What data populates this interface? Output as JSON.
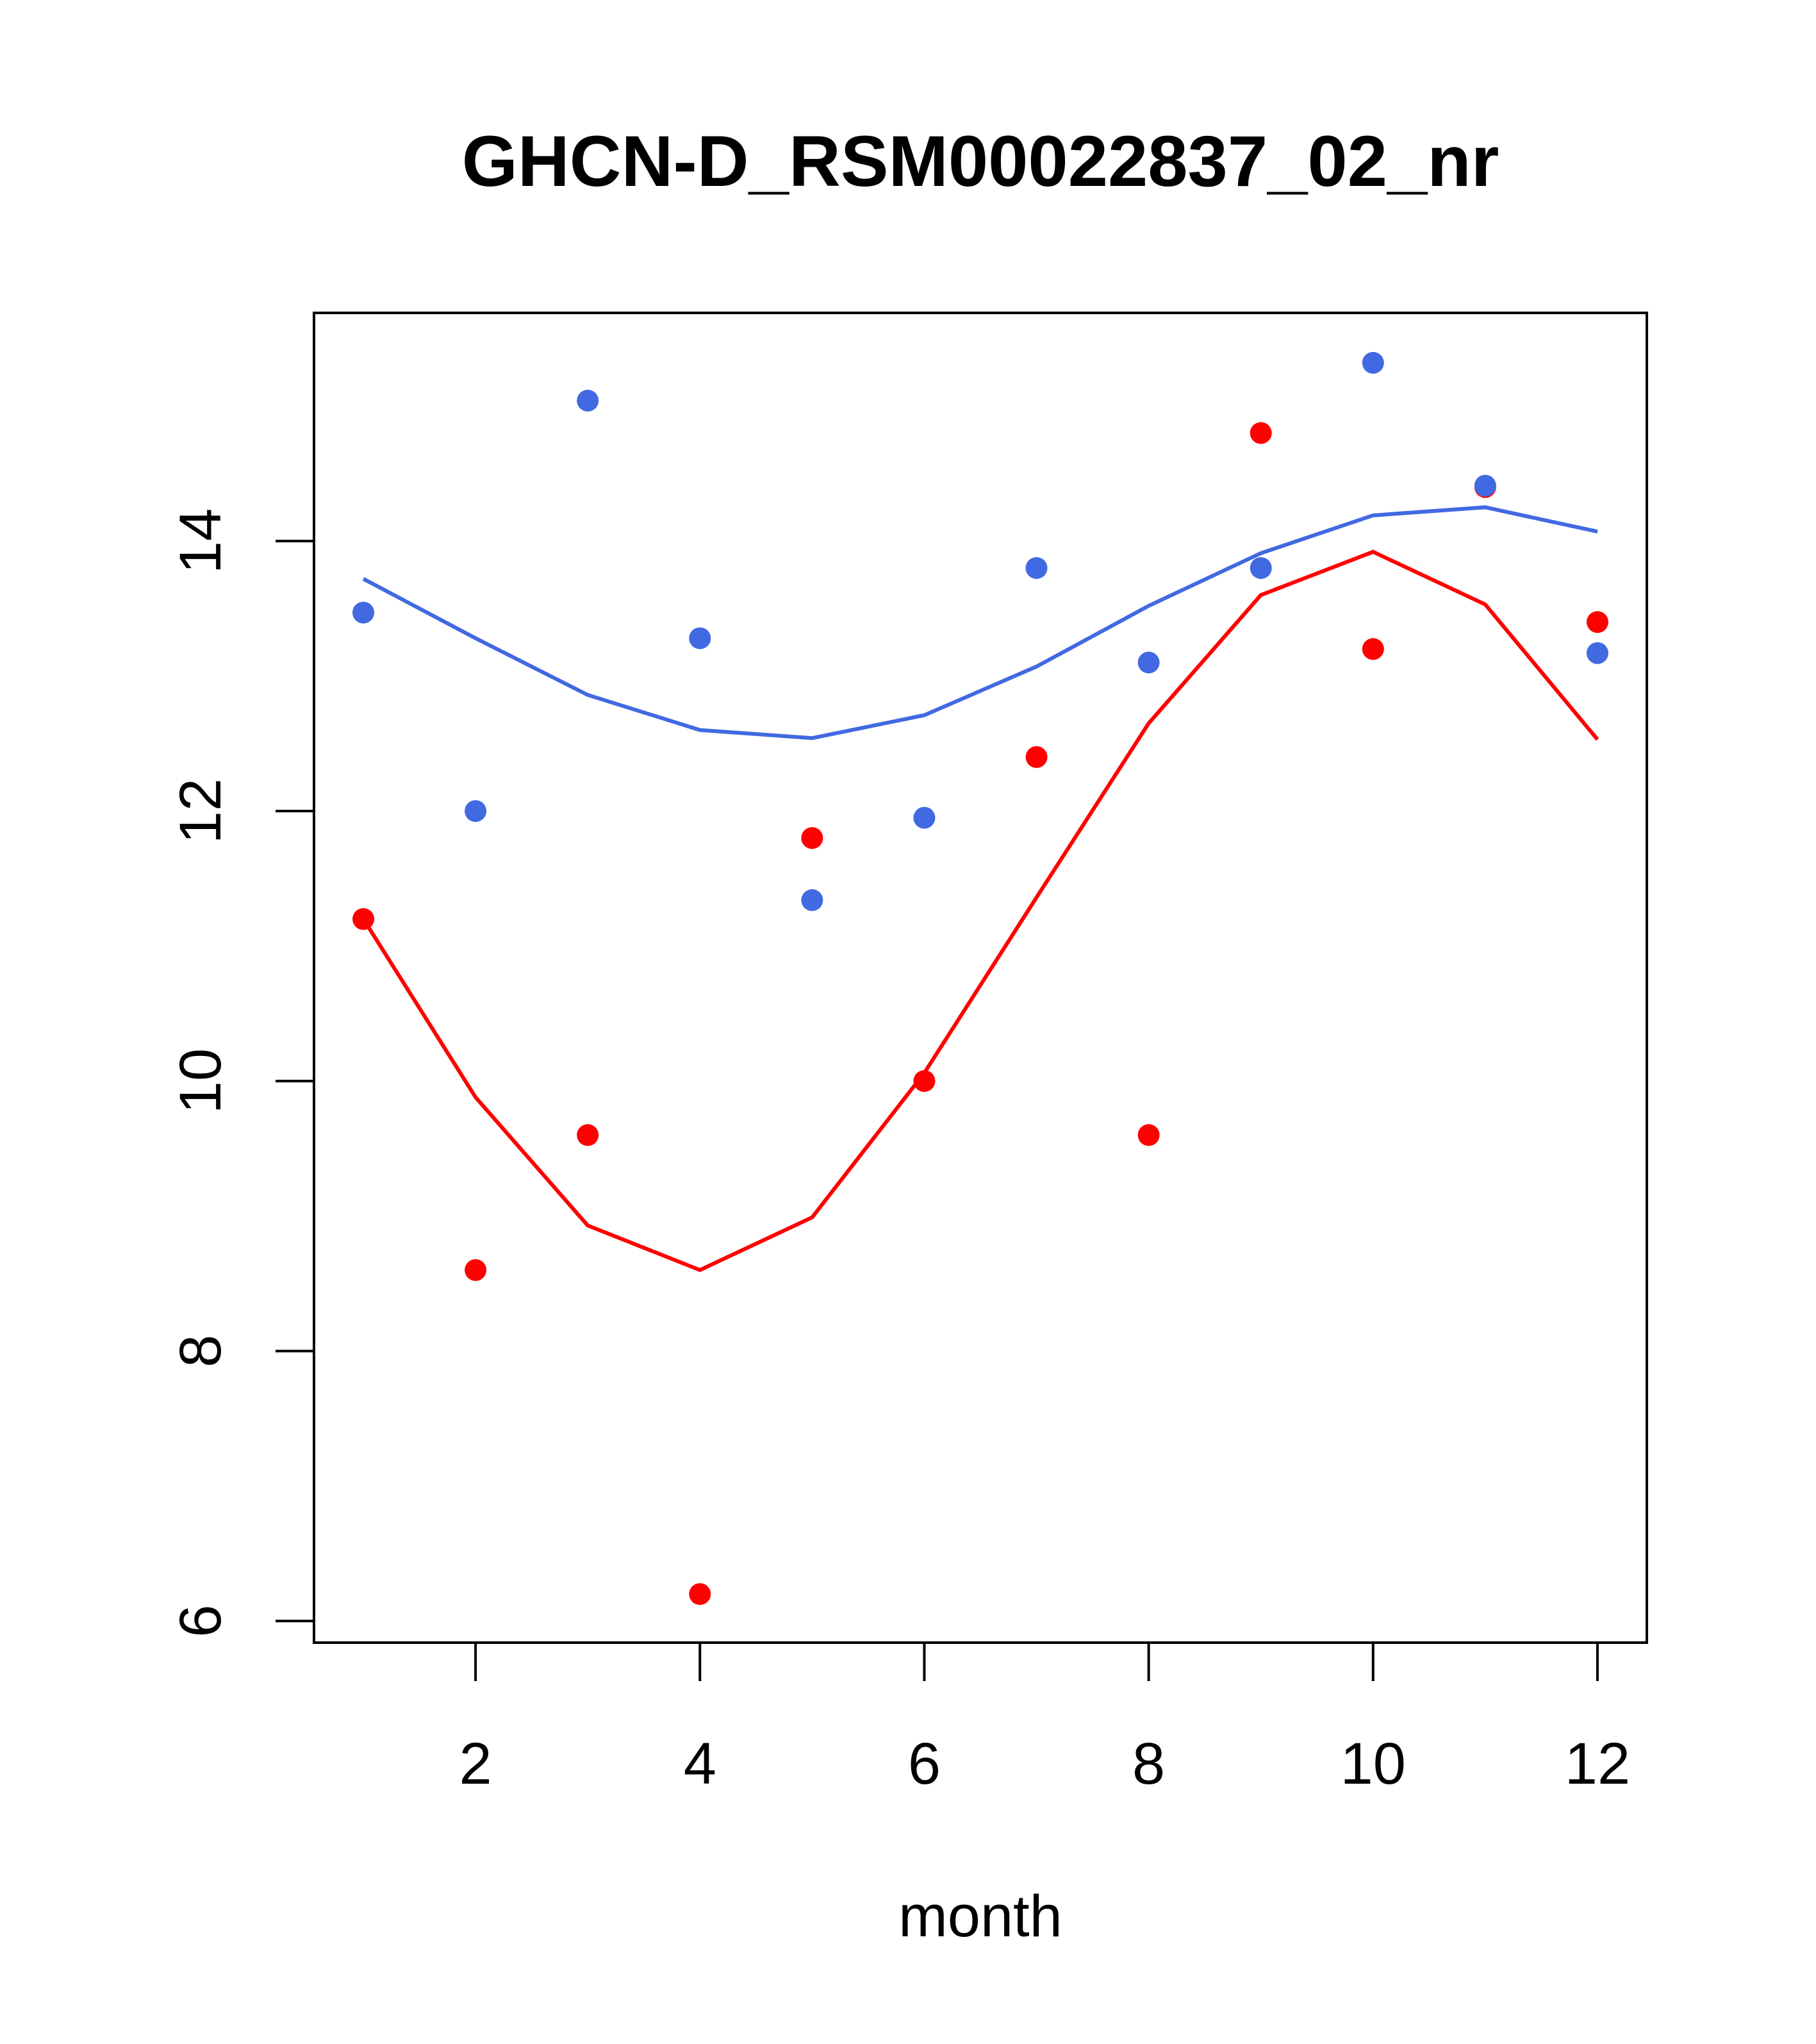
{
  "chart_data": {
    "type": "scatter",
    "title": "GHCN-D_RSM00022837_02_nr",
    "xlabel": "month",
    "ylabel": "",
    "xlim": [
      0.56,
      12.44
    ],
    "ylim": [
      5.84,
      15.69
    ],
    "xticks": [
      2,
      4,
      6,
      8,
      10,
      12
    ],
    "yticks": [
      6,
      8,
      10,
      12,
      14
    ],
    "grid": false,
    "x": [
      1,
      2,
      3,
      4,
      5,
      6,
      7,
      8,
      9,
      10,
      11,
      12
    ],
    "series": [
      {
        "name": "red points",
        "kind": "points",
        "color": "#ff0000",
        "values": [
          11.2,
          8.6,
          9.6,
          6.2,
          11.8,
          10.0,
          12.4,
          9.6,
          14.8,
          13.2,
          14.4,
          13.4
        ]
      },
      {
        "name": "blue points",
        "kind": "points",
        "color": "#4169e1",
        "values": [
          13.47,
          12.0,
          15.04,
          13.28,
          11.34,
          11.95,
          13.8,
          13.1,
          13.8,
          15.32,
          14.41,
          13.17
        ]
      },
      {
        "name": "red smooth",
        "kind": "line",
        "color": "#ff0000",
        "values": [
          11.2,
          9.88,
          8.93,
          8.6,
          8.99,
          10.06,
          11.36,
          12.65,
          13.6,
          13.92,
          13.53,
          12.53
        ]
      },
      {
        "name": "blue smooth",
        "kind": "line",
        "color": "#4169e1",
        "values": [
          13.72,
          13.28,
          12.86,
          12.6,
          12.54,
          12.71,
          13.07,
          13.52,
          13.91,
          14.19,
          14.25,
          14.07
        ]
      }
    ]
  }
}
